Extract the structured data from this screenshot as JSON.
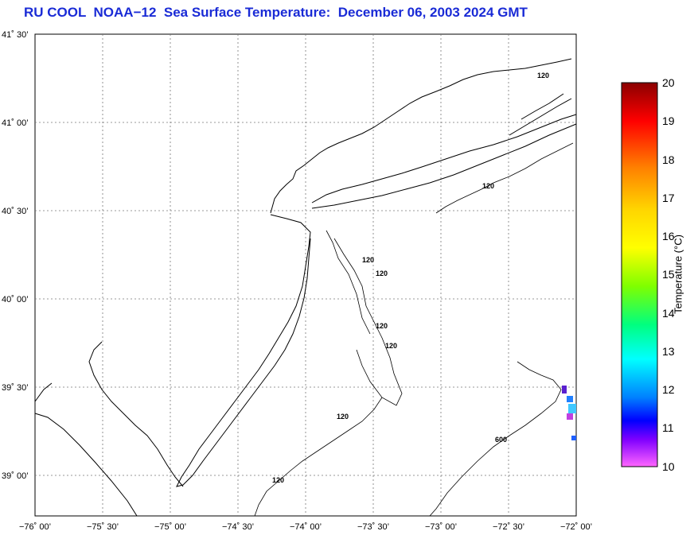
{
  "title": "RU COOL  NOAA−12  Sea Surface Temperature:  December 06, 2003 2024 GMT",
  "map": {
    "lat_labels": [
      "41˚ 30’",
      "41˚ 00’",
      "40˚ 30’",
      "40˚ 00’",
      "39˚ 30’",
      "39˚ 00’"
    ],
    "lon_labels": [
      "−76˚ 00’",
      "−75˚ 30’",
      "−75˚ 00’",
      "−74˚ 30’",
      "−74˚ 00’",
      "−73˚ 30’",
      "−73˚ 00’",
      "−72˚ 30’",
      "−72˚ 00’"
    ],
    "contour_labels": [
      "120",
      "120",
      "120",
      "120",
      "120",
      "120",
      "120",
      "120",
      "600"
    ],
    "grid": true,
    "land_color": "#ffffff",
    "coast_color": "#000000"
  },
  "colorbar": {
    "label": "Temperature (°C)",
    "ticks": [
      "20",
      "19",
      "18",
      "17",
      "16",
      "15",
      "14",
      "13",
      "12",
      "11",
      "10"
    ],
    "min": 10,
    "max": 20
  }
}
